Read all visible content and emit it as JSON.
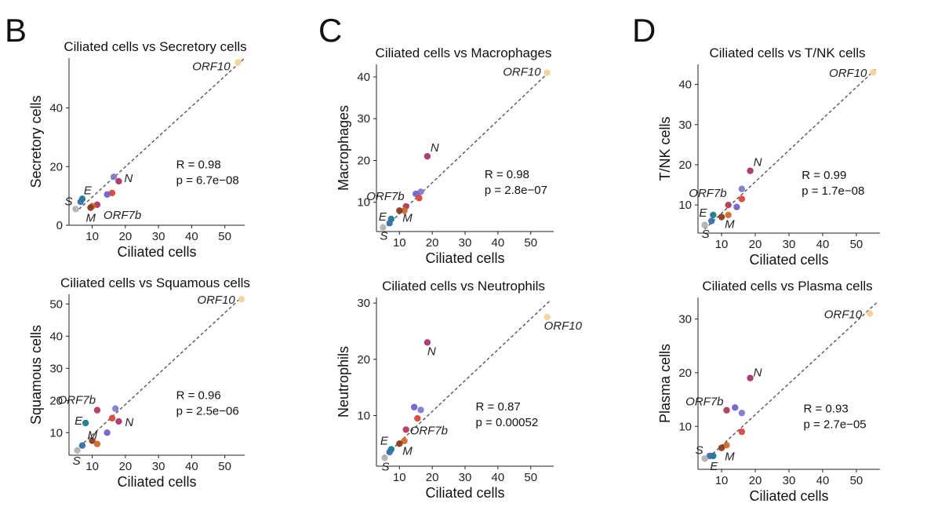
{
  "panels": [
    {
      "letter": "B"
    },
    {
      "letter": "C"
    },
    {
      "letter": "D"
    }
  ],
  "chart_data": [
    {
      "type": "scatter",
      "title": "Ciliated cells vs Secretory cells",
      "xlabel": "Ciliated cells",
      "ylabel": "Secretory cells",
      "xlim": [
        3,
        56
      ],
      "ylim": [
        0,
        57
      ],
      "xticks": [
        10,
        20,
        30,
        40,
        50
      ],
      "yticks": [
        0,
        20,
        40
      ],
      "trendline": {
        "x": [
          6,
          56
        ],
        "y": [
          5.5,
          57
        ]
      },
      "stats": {
        "r": "R = 0.98",
        "p": "p = 6.7e−08"
      },
      "points": [
        {
          "x": 54.0,
          "y": 55.5,
          "color": "#f2d29a",
          "label": "ORF10"
        },
        {
          "x": 18.0,
          "y": 15.0,
          "color": "#a6376b",
          "label": "N"
        },
        {
          "x": 16.5,
          "y": 16.5,
          "color": "#7c7ccf",
          "label": ""
        },
        {
          "x": 16.0,
          "y": 11.0,
          "color": "#d9473a",
          "label": ""
        },
        {
          "x": 14.5,
          "y": 10.5,
          "color": "#6d63c9",
          "label": ""
        },
        {
          "x": 11.5,
          "y": 7.0,
          "color": "#b23a5a",
          "label": "ORF7b"
        },
        {
          "x": 10.0,
          "y": 6.5,
          "color": "#cf6a2d",
          "label": ""
        },
        {
          "x": 9.5,
          "y": 6.0,
          "color": "#8c3a1e",
          "label": "M"
        },
        {
          "x": 7.0,
          "y": 9.0,
          "color": "#1b7a8c",
          "label": "E"
        },
        {
          "x": 6.5,
          "y": 8.0,
          "color": "#3a6fa8",
          "label": ""
        },
        {
          "x": 5.0,
          "y": 5.5,
          "color": "#b3b3b3",
          "label": "S"
        }
      ]
    },
    {
      "type": "scatter",
      "title": "Ciliated cells vs Squamous cells",
      "xlabel": "Ciliated cells",
      "ylabel": "Squamous cells",
      "xlim": [
        3,
        56
      ],
      "ylim": [
        3,
        53
      ],
      "xticks": [
        10,
        20,
        30,
        40,
        50
      ],
      "yticks": [
        10,
        20,
        30,
        40,
        50
      ],
      "trendline": {
        "x": [
          5,
          55
        ],
        "y": [
          4.5,
          52
        ]
      },
      "stats": {
        "r": "R = 0.96",
        "p": "p = 2.5e−06"
      },
      "points": [
        {
          "x": 55.0,
          "y": 51.5,
          "color": "#f2d29a",
          "label": "ORF10"
        },
        {
          "x": 17.0,
          "y": 17.5,
          "color": "#7c7ccf",
          "label": ""
        },
        {
          "x": 11.5,
          "y": 17.0,
          "color": "#b23a5a",
          "label": "ORF7b"
        },
        {
          "x": 18.0,
          "y": 13.5,
          "color": "#a6376b",
          "label": "N"
        },
        {
          "x": 16.0,
          "y": 14.5,
          "color": "#d9473a",
          "label": ""
        },
        {
          "x": 14.5,
          "y": 10.0,
          "color": "#6d63c9",
          "label": ""
        },
        {
          "x": 8.0,
          "y": 13.0,
          "color": "#1b7a8c",
          "label": "E"
        },
        {
          "x": 10.0,
          "y": 7.5,
          "color": "#8c3a1e",
          "label": "M"
        },
        {
          "x": 11.5,
          "y": 6.5,
          "color": "#cf6a2d",
          "label": ""
        },
        {
          "x": 7.0,
          "y": 6.0,
          "color": "#3a6fa8",
          "label": ""
        },
        {
          "x": 5.5,
          "y": 4.5,
          "color": "#b3b3b3",
          "label": "S"
        }
      ]
    },
    {
      "type": "scatter",
      "title": "Ciliated cells vs Macrophages",
      "xlabel": "Ciliated cells",
      "ylabel": "Macrophages",
      "xlim": [
        3,
        57
      ],
      "ylim": [
        3,
        43
      ],
      "xticks": [
        10,
        20,
        30,
        40,
        50
      ],
      "yticks": [
        10,
        20,
        30,
        40
      ],
      "trendline": {
        "x": [
          5,
          56
        ],
        "y": [
          3.5,
          41.5
        ]
      },
      "stats": {
        "r": "R = 0.98",
        "p": "p = 2.8e−07"
      },
      "points": [
        {
          "x": 55.0,
          "y": 41.0,
          "color": "#f2d29a",
          "label": "ORF10"
        },
        {
          "x": 18.5,
          "y": 21.0,
          "color": "#a6376b",
          "label": "N"
        },
        {
          "x": 16.5,
          "y": 12.5,
          "color": "#7c7ccf",
          "label": ""
        },
        {
          "x": 15.0,
          "y": 12.0,
          "color": "#6d63c9",
          "label": ""
        },
        {
          "x": 16.0,
          "y": 11.0,
          "color": "#d9473a",
          "label": ""
        },
        {
          "x": 12.0,
          "y": 9.0,
          "color": "#b23a5a",
          "label": "ORF7b"
        },
        {
          "x": 11.5,
          "y": 8.0,
          "color": "#cf6a2d",
          "label": ""
        },
        {
          "x": 10.0,
          "y": 8.0,
          "color": "#8c3a1e",
          "label": "M"
        },
        {
          "x": 7.5,
          "y": 6.0,
          "color": "#1b7a8c",
          "label": "E"
        },
        {
          "x": 7.0,
          "y": 5.0,
          "color": "#3a6fa8",
          "label": ""
        },
        {
          "x": 5.0,
          "y": 4.0,
          "color": "#b3b3b3",
          "label": "S"
        }
      ]
    },
    {
      "type": "scatter",
      "title": "Ciliated cells vs Neutrophils",
      "xlabel": "Ciliated cells",
      "ylabel": "Neutrophils",
      "xlim": [
        3,
        57
      ],
      "ylim": [
        1,
        31
      ],
      "xticks": [
        10,
        20,
        30,
        40,
        50
      ],
      "yticks": [
        10,
        20,
        30
      ],
      "trendline": {
        "x": [
          5,
          56
        ],
        "y": [
          2.5,
          30.5
        ]
      },
      "stats": {
        "r": "R = 0.87",
        "p": "p = 0.00052"
      },
      "points": [
        {
          "x": 55.0,
          "y": 27.5,
          "color": "#f2d29a",
          "label": "ORF10"
        },
        {
          "x": 18.5,
          "y": 23.0,
          "color": "#a6376b",
          "label": "N"
        },
        {
          "x": 14.5,
          "y": 11.5,
          "color": "#6d63c9",
          "label": ""
        },
        {
          "x": 16.5,
          "y": 11.0,
          "color": "#7c7ccf",
          "label": ""
        },
        {
          "x": 15.5,
          "y": 9.5,
          "color": "#d9473a",
          "label": ""
        },
        {
          "x": 12.0,
          "y": 7.5,
          "color": "#b23a5a",
          "label": "ORF7b"
        },
        {
          "x": 11.5,
          "y": 5.5,
          "color": "#cf6a2d",
          "label": ""
        },
        {
          "x": 10.0,
          "y": 5.0,
          "color": "#8c3a1e",
          "label": "M"
        },
        {
          "x": 7.5,
          "y": 4.0,
          "color": "#1b7a8c",
          "label": "E"
        },
        {
          "x": 7.0,
          "y": 3.5,
          "color": "#3a6fa8",
          "label": ""
        },
        {
          "x": 5.5,
          "y": 2.5,
          "color": "#b3b3b3",
          "label": "S"
        }
      ]
    },
    {
      "type": "scatter",
      "title": "Ciliated cells vs T/NK cells",
      "xlabel": "Ciliated cells",
      "ylabel": "T/NK cells",
      "xlim": [
        3,
        57
      ],
      "ylim": [
        3,
        45
      ],
      "xticks": [
        10,
        20,
        30,
        40,
        50
      ],
      "yticks": [
        10,
        20,
        30,
        40
      ],
      "trendline": {
        "x": [
          5,
          56
        ],
        "y": [
          4,
          44
        ]
      },
      "stats": {
        "r": "R = 0.99",
        "p": "p = 1.7e−08"
      },
      "points": [
        {
          "x": 55.0,
          "y": 43.0,
          "color": "#f2d29a",
          "label": "ORF10"
        },
        {
          "x": 18.5,
          "y": 18.5,
          "color": "#a6376b",
          "label": "N"
        },
        {
          "x": 16.0,
          "y": 14.0,
          "color": "#7c7ccf",
          "label": ""
        },
        {
          "x": 16.0,
          "y": 11.5,
          "color": "#d9473a",
          "label": ""
        },
        {
          "x": 14.5,
          "y": 9.5,
          "color": "#6d63c9",
          "label": ""
        },
        {
          "x": 12.0,
          "y": 10.0,
          "color": "#b23a5a",
          "label": "ORF7b"
        },
        {
          "x": 12.0,
          "y": 7.5,
          "color": "#cf6a2d",
          "label": ""
        },
        {
          "x": 10.0,
          "y": 7.0,
          "color": "#8c3a1e",
          "label": "M"
        },
        {
          "x": 7.5,
          "y": 7.5,
          "color": "#1b7a8c",
          "label": "E"
        },
        {
          "x": 7.0,
          "y": 6.0,
          "color": "#3a6fa8",
          "label": ""
        },
        {
          "x": 5.0,
          "y": 5.0,
          "color": "#b3b3b3",
          "label": "S"
        }
      ]
    },
    {
      "type": "scatter",
      "title": "Ciliated cells vs Plasma cells",
      "xlabel": "Ciliated cells",
      "ylabel": "Plasma cells",
      "xlim": [
        3,
        57
      ],
      "ylim": [
        2,
        34
      ],
      "xticks": [
        10,
        20,
        30,
        40,
        50
      ],
      "yticks": [
        10,
        20,
        30
      ],
      "trendline": {
        "x": [
          5,
          56
        ],
        "y": [
          3.5,
          33
        ]
      },
      "stats": {
        "r": "R = 0.93",
        "p": "p = 2.7e−05"
      },
      "points": [
        {
          "x": 54.0,
          "y": 31.0,
          "color": "#f2d29a",
          "label": "ORF10"
        },
        {
          "x": 18.5,
          "y": 19.0,
          "color": "#a6376b",
          "label": "N"
        },
        {
          "x": 14.0,
          "y": 13.5,
          "color": "#6d63c9",
          "label": ""
        },
        {
          "x": 16.0,
          "y": 12.5,
          "color": "#7c7ccf",
          "label": ""
        },
        {
          "x": 11.5,
          "y": 13.0,
          "color": "#b23a5a",
          "label": "ORF7b"
        },
        {
          "x": 16.0,
          "y": 9.0,
          "color": "#d9473a",
          "label": ""
        },
        {
          "x": 11.5,
          "y": 6.5,
          "color": "#cf6a2d",
          "label": ""
        },
        {
          "x": 10.0,
          "y": 6.0,
          "color": "#8c3a1e",
          "label": "M"
        },
        {
          "x": 7.5,
          "y": 4.5,
          "color": "#1b7a8c",
          "label": "E"
        },
        {
          "x": 6.5,
          "y": 4.5,
          "color": "#3a6fa8",
          "label": ""
        },
        {
          "x": 5.0,
          "y": 4.0,
          "color": "#b3b3b3",
          "label": "S"
        }
      ]
    }
  ]
}
